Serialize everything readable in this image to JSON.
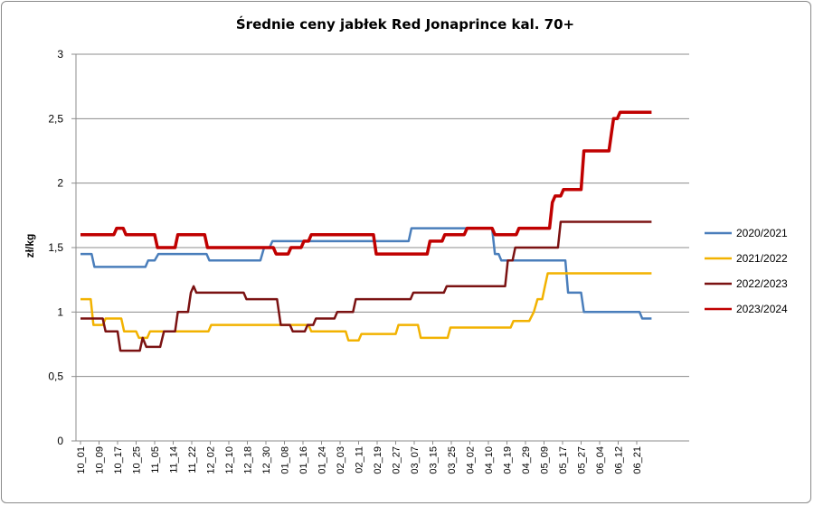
{
  "chart_data": {
    "type": "line",
    "title": "Średnie ceny jabłek Red Jonaprince kal. 70+",
    "xlabel": "",
    "ylabel": "zł/kg",
    "ylim": [
      0,
      3
    ],
    "yticks": [
      "0",
      "0,5",
      "1",
      "1,5",
      "2",
      "2,5",
      "3"
    ],
    "grid": "horizontal",
    "legend_position": "right",
    "x_tick_labels": [
      "10_01",
      "10_09",
      "10_17",
      "10_25",
      "11_05",
      "11_14",
      "11_22",
      "12_02",
      "12_10",
      "12_18",
      "12_30",
      "01_08",
      "01_16",
      "01_24",
      "02_03",
      "02_11",
      "02_19",
      "02_27",
      "03_07",
      "03_15",
      "03_25",
      "04_02",
      "04_10",
      "04_19",
      "04_29",
      "05_09",
      "05_17",
      "05_27",
      "06_04",
      "06_12",
      "06_21"
    ],
    "series": [
      {
        "name": "2020/2021",
        "color": "#4a7ebb",
        "points": [
          [
            0,
            1.45
          ],
          [
            0.6,
            1.45
          ],
          [
            0.75,
            1.35
          ],
          [
            3.5,
            1.35
          ],
          [
            3.65,
            1.4
          ],
          [
            4.0,
            1.4
          ],
          [
            4.2,
            1.45
          ],
          [
            6.8,
            1.45
          ],
          [
            6.95,
            1.4
          ],
          [
            9.7,
            1.4
          ],
          [
            9.9,
            1.5
          ],
          [
            10.2,
            1.5
          ],
          [
            10.35,
            1.55
          ],
          [
            17.7,
            1.55
          ],
          [
            17.85,
            1.65
          ],
          [
            22.2,
            1.65
          ],
          [
            22.35,
            1.45
          ],
          [
            22.55,
            1.45
          ],
          [
            22.7,
            1.4
          ],
          [
            26.15,
            1.4
          ],
          [
            26.3,
            1.15
          ],
          [
            27.0,
            1.15
          ],
          [
            27.15,
            1.0
          ],
          [
            30.15,
            1.0
          ],
          [
            30.3,
            0.95
          ],
          [
            30.8,
            0.95
          ]
        ]
      },
      {
        "name": "2021/2022",
        "color": "#f2b200",
        "points": [
          [
            0,
            1.1
          ],
          [
            0.55,
            1.1
          ],
          [
            0.7,
            0.9
          ],
          [
            1.2,
            0.9
          ],
          [
            1.35,
            0.95
          ],
          [
            2.2,
            0.95
          ],
          [
            2.35,
            0.85
          ],
          [
            3.0,
            0.85
          ],
          [
            3.15,
            0.8
          ],
          [
            3.6,
            0.8
          ],
          [
            3.75,
            0.85
          ],
          [
            6.9,
            0.85
          ],
          [
            7.05,
            0.9
          ],
          [
            12.3,
            0.9
          ],
          [
            12.45,
            0.85
          ],
          [
            14.3,
            0.85
          ],
          [
            14.45,
            0.78
          ],
          [
            15.0,
            0.78
          ],
          [
            15.15,
            0.83
          ],
          [
            17.0,
            0.83
          ],
          [
            17.15,
            0.9
          ],
          [
            18.2,
            0.9
          ],
          [
            18.35,
            0.8
          ],
          [
            19.8,
            0.8
          ],
          [
            19.95,
            0.88
          ],
          [
            23.2,
            0.88
          ],
          [
            23.35,
            0.93
          ],
          [
            24.2,
            0.93
          ],
          [
            24.45,
            1.0
          ],
          [
            24.65,
            1.1
          ],
          [
            24.9,
            1.1
          ],
          [
            25.05,
            1.2
          ],
          [
            25.2,
            1.3
          ],
          [
            30.8,
            1.3
          ]
        ]
      },
      {
        "name": "2022/2023",
        "color": "#7b1212",
        "points": [
          [
            0,
            0.95
          ],
          [
            1.2,
            0.95
          ],
          [
            1.35,
            0.85
          ],
          [
            2.0,
            0.85
          ],
          [
            2.15,
            0.7
          ],
          [
            3.2,
            0.7
          ],
          [
            3.35,
            0.8
          ],
          [
            3.55,
            0.73
          ],
          [
            4.3,
            0.73
          ],
          [
            4.5,
            0.85
          ],
          [
            5.1,
            0.85
          ],
          [
            5.25,
            1.0
          ],
          [
            5.8,
            1.0
          ],
          [
            5.95,
            1.15
          ],
          [
            6.1,
            1.2
          ],
          [
            6.25,
            1.15
          ],
          [
            8.8,
            1.15
          ],
          [
            8.95,
            1.1
          ],
          [
            10.6,
            1.1
          ],
          [
            10.8,
            0.9
          ],
          [
            11.3,
            0.9
          ],
          [
            11.45,
            0.85
          ],
          [
            12.1,
            0.85
          ],
          [
            12.25,
            0.9
          ],
          [
            12.55,
            0.9
          ],
          [
            12.7,
            0.95
          ],
          [
            13.7,
            0.95
          ],
          [
            13.85,
            1.0
          ],
          [
            14.7,
            1.0
          ],
          [
            14.85,
            1.1
          ],
          [
            17.8,
            1.1
          ],
          [
            17.95,
            1.15
          ],
          [
            19.6,
            1.15
          ],
          [
            19.75,
            1.2
          ],
          [
            22.9,
            1.2
          ],
          [
            23.05,
            1.4
          ],
          [
            23.3,
            1.4
          ],
          [
            23.45,
            1.5
          ],
          [
            25.75,
            1.5
          ],
          [
            25.9,
            1.7
          ],
          [
            30.8,
            1.7
          ]
        ]
      },
      {
        "name": "2023/2024",
        "color": "#c00000",
        "points": [
          [
            0,
            1.6
          ],
          [
            1.8,
            1.6
          ],
          [
            1.95,
            1.65
          ],
          [
            2.3,
            1.65
          ],
          [
            2.45,
            1.6
          ],
          [
            4.0,
            1.6
          ],
          [
            4.15,
            1.5
          ],
          [
            5.1,
            1.5
          ],
          [
            5.25,
            1.6
          ],
          [
            6.7,
            1.6
          ],
          [
            6.85,
            1.5
          ],
          [
            10.4,
            1.5
          ],
          [
            10.55,
            1.45
          ],
          [
            11.2,
            1.45
          ],
          [
            11.35,
            1.5
          ],
          [
            11.9,
            1.5
          ],
          [
            12.05,
            1.55
          ],
          [
            12.3,
            1.55
          ],
          [
            12.45,
            1.6
          ],
          [
            15.8,
            1.6
          ],
          [
            15.95,
            1.45
          ],
          [
            18.7,
            1.45
          ],
          [
            18.85,
            1.55
          ],
          [
            19.5,
            1.55
          ],
          [
            19.65,
            1.6
          ],
          [
            20.7,
            1.6
          ],
          [
            20.85,
            1.65
          ],
          [
            22.2,
            1.65
          ],
          [
            22.35,
            1.6
          ],
          [
            23.5,
            1.6
          ],
          [
            23.65,
            1.65
          ],
          [
            25.3,
            1.65
          ],
          [
            25.45,
            1.85
          ],
          [
            25.6,
            1.9
          ],
          [
            25.9,
            1.9
          ],
          [
            26.05,
            1.95
          ],
          [
            27.0,
            1.95
          ],
          [
            27.15,
            2.25
          ],
          [
            28.5,
            2.25
          ],
          [
            28.65,
            2.4
          ],
          [
            28.75,
            2.5
          ],
          [
            28.95,
            2.5
          ],
          [
            29.1,
            2.55
          ],
          [
            30.8,
            2.55
          ]
        ]
      }
    ]
  }
}
